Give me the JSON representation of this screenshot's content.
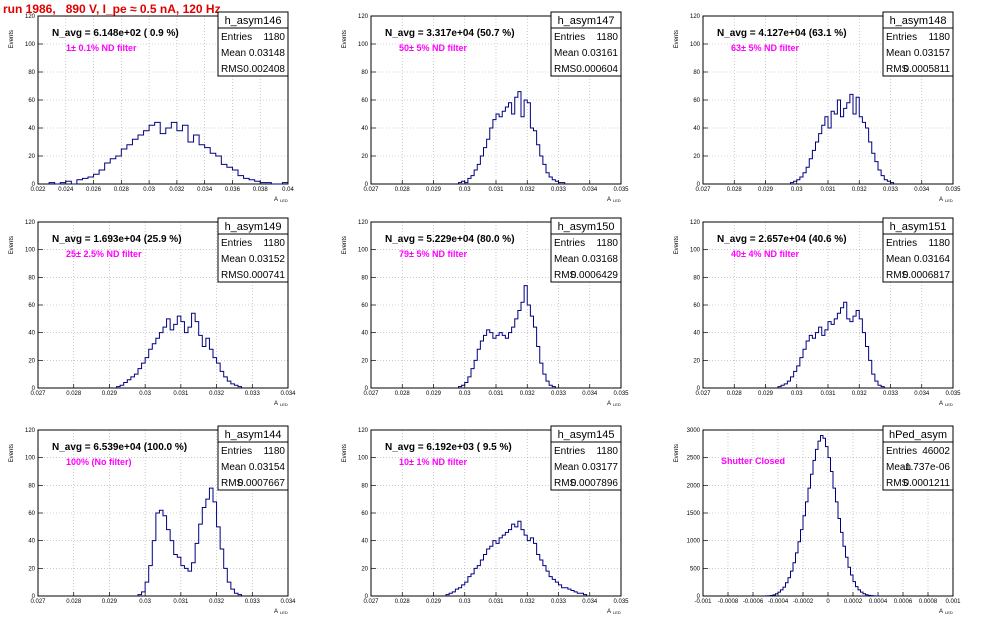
{
  "title": "run 1986,   890 V, I_pe ≈ 0.5 nA, 120 Hz",
  "chart_data": [
    {
      "type": "histogram",
      "name": "h_asym146",
      "navg": "N_avg = 6.148e+02 ( 0.9 %)",
      "filter": "1± 0.1% ND filter",
      "stats": {
        "entries": "1180",
        "mean": "0.03148",
        "rms": "0.002408"
      },
      "xlim": [
        0.022,
        0.04
      ],
      "ylim": [
        0,
        120
      ],
      "xticks": [
        0.022,
        0.024,
        0.026,
        0.028,
        0.03,
        0.032,
        0.034,
        0.036,
        0.038,
        0.04
      ],
      "xticklabels": [
        "0.022",
        "0.024",
        "0.026",
        "0.028",
        "0.03",
        "0.032",
        "0.034",
        "0.036",
        "0.038",
        "0.04"
      ],
      "yticks": [
        0,
        20,
        40,
        60,
        80,
        100,
        120
      ],
      "ylabel": "Events",
      "xlabel": "A",
      "xlabel_sub": "LED",
      "bins": {
        "start": 0.0228,
        "width": 0.0004,
        "values": [
          1,
          0,
          1,
          2,
          0,
          3,
          4,
          5,
          7,
          10,
          15,
          18,
          20,
          25,
          28,
          32,
          35,
          38,
          42,
          44,
          36,
          40,
          44,
          38,
          42,
          30,
          35,
          28,
          26,
          22,
          20,
          14,
          12,
          10,
          6,
          4,
          3,
          2,
          1,
          1,
          0,
          0,
          1
        ]
      }
    },
    {
      "type": "histogram",
      "name": "h_asym147",
      "navg": "N_avg = 3.317e+04 (50.7 %)",
      "filter": "50± 5% ND filter",
      "stats": {
        "entries": "1180",
        "mean": "0.03161",
        "rms": "0.000604"
      },
      "xlim": [
        0.027,
        0.035
      ],
      "ylim": [
        0,
        120
      ],
      "xticks": [
        0.027,
        0.028,
        0.029,
        0.03,
        0.031,
        0.032,
        0.033,
        0.034,
        0.035
      ],
      "xticklabels": [
        "0.027",
        "0.028",
        "0.029",
        "0.03",
        "0.031",
        "0.032",
        "0.033",
        "0.034",
        "0.035"
      ],
      "yticks": [
        0,
        20,
        40,
        60,
        80,
        100,
        120
      ],
      "ylabel": "Events",
      "xlabel": "A",
      "xlabel_sub": "LED",
      "bins": {
        "start": 0.0298,
        "width": 0.0001,
        "values": [
          1,
          2,
          1,
          4,
          6,
          10,
          14,
          20,
          26,
          32,
          40,
          46,
          50,
          48,
          52,
          55,
          58,
          50,
          62,
          66,
          48,
          60,
          58,
          40,
          38,
          28,
          20,
          14,
          8,
          5,
          3,
          2,
          1,
          1
        ]
      }
    },
    {
      "type": "histogram",
      "name": "h_asym148",
      "navg": "N_avg = 4.127e+04 (63.1 %)",
      "filter": "63± 5% ND filter",
      "stats": {
        "entries": "1180",
        "mean": "0.03157",
        "rms": "0.0005811"
      },
      "xlim": [
        0.027,
        0.035
      ],
      "ylim": [
        0,
        120
      ],
      "xticks": [
        0.027,
        0.028,
        0.029,
        0.03,
        0.031,
        0.032,
        0.033,
        0.034,
        0.035
      ],
      "xticklabels": [
        "0.027",
        "0.028",
        "0.029",
        "0.03",
        "0.031",
        "0.032",
        "0.033",
        "0.034",
        "0.035"
      ],
      "yticks": [
        0,
        20,
        40,
        60,
        80,
        100,
        120
      ],
      "ylabel": "Events",
      "xlabel": "A",
      "xlabel_sub": "LED",
      "bins": {
        "start": 0.0298,
        "width": 0.0001,
        "values": [
          1,
          2,
          3,
          5,
          8,
          12,
          18,
          24,
          30,
          36,
          42,
          48,
          40,
          52,
          50,
          60,
          48,
          54,
          58,
          64,
          50,
          62,
          48,
          44,
          40,
          30,
          22,
          16,
          10,
          6,
          3,
          2,
          1
        ]
      }
    },
    {
      "type": "histogram",
      "name": "h_asym149",
      "navg": "N_avg = 1.693e+04 (25.9 %)",
      "filter": "25± 2.5% ND filter",
      "stats": {
        "entries": "1180",
        "mean": "0.03152",
        "rms": "0.000741"
      },
      "xlim": [
        0.027,
        0.034
      ],
      "ylim": [
        0,
        120
      ],
      "xticks": [
        0.027,
        0.028,
        0.029,
        0.03,
        0.031,
        0.032,
        0.033,
        0.034
      ],
      "xticklabels": [
        "0.027",
        "0.028",
        "0.029",
        "0.03",
        "0.031",
        "0.032",
        "0.033",
        "0.034"
      ],
      "yticks": [
        0,
        20,
        40,
        60,
        80,
        100,
        120
      ],
      "ylabel": "Events",
      "xlabel": "A",
      "xlabel_sub": "LED",
      "bins": {
        "start": 0.0292,
        "width": 0.0001,
        "values": [
          1,
          2,
          4,
          6,
          8,
          10,
          14,
          18,
          22,
          28,
          32,
          36,
          40,
          44,
          50,
          42,
          46,
          52,
          48,
          40,
          44,
          54,
          48,
          38,
          30,
          36,
          28,
          22,
          18,
          12,
          8,
          5,
          3,
          2,
          1
        ]
      }
    },
    {
      "type": "histogram",
      "name": "h_asym150",
      "navg": "N_avg = 5.229e+04 (80.0 %)",
      "filter": "79± 5% ND filter",
      "stats": {
        "entries": "1180",
        "mean": "0.03168",
        "rms": "0.0006429"
      },
      "xlim": [
        0.027,
        0.035
      ],
      "ylim": [
        0,
        120
      ],
      "xticks": [
        0.027,
        0.028,
        0.029,
        0.03,
        0.031,
        0.032,
        0.033,
        0.034,
        0.035
      ],
      "xticklabels": [
        "0.027",
        "0.028",
        "0.029",
        "0.03",
        "0.031",
        "0.032",
        "0.033",
        "0.034",
        "0.035"
      ],
      "yticks": [
        0,
        20,
        40,
        60,
        80,
        100,
        120
      ],
      "ylabel": "Events",
      "xlabel": "A",
      "xlabel_sub": "LED",
      "bins": {
        "start": 0.0298,
        "width": 0.0001,
        "values": [
          1,
          2,
          4,
          8,
          14,
          20,
          28,
          34,
          38,
          42,
          40,
          36,
          38,
          40,
          38,
          36,
          40,
          44,
          50,
          56,
          62,
          74,
          60,
          52,
          44,
          30,
          18,
          10,
          5,
          2,
          1
        ]
      }
    },
    {
      "type": "histogram",
      "name": "h_asym151",
      "navg": "N_avg = 2.657e+04 (40.6 %)",
      "filter": "40± 4% ND filter",
      "stats": {
        "entries": "1180",
        "mean": "0.03164",
        "rms": "0.0006817"
      },
      "xlim": [
        0.027,
        0.035
      ],
      "ylim": [
        0,
        120
      ],
      "xticks": [
        0.027,
        0.028,
        0.029,
        0.03,
        0.031,
        0.032,
        0.033,
        0.034,
        0.035
      ],
      "xticklabels": [
        "0.027",
        "0.028",
        "0.029",
        "0.03",
        "0.031",
        "0.032",
        "0.033",
        "0.034",
        "0.035"
      ],
      "yticks": [
        0,
        20,
        40,
        60,
        80,
        100,
        120
      ],
      "ylabel": "Events",
      "xlabel": "A",
      "xlabel_sub": "LED",
      "bins": {
        "start": 0.0294,
        "width": 0.0001,
        "values": [
          1,
          2,
          3,
          5,
          8,
          12,
          16,
          22,
          28,
          34,
          38,
          36,
          40,
          44,
          38,
          42,
          48,
          46,
          50,
          54,
          58,
          62,
          50,
          48,
          52,
          56,
          50,
          40,
          30,
          20,
          10,
          5,
          2,
          1
        ]
      }
    },
    {
      "type": "histogram",
      "name": "h_asym144",
      "navg": "N_avg = 6.539e+04 (100.0 %)",
      "filter": "100% (No filter)",
      "stats": {
        "entries": "1180",
        "mean": "0.03154",
        "rms": "0.0007667"
      },
      "xlim": [
        0.027,
        0.034
      ],
      "ylim": [
        0,
        120
      ],
      "xticks": [
        0.027,
        0.028,
        0.029,
        0.03,
        0.031,
        0.032,
        0.033,
        0.034
      ],
      "xticklabels": [
        "0.027",
        "0.028",
        "0.029",
        "0.03",
        "0.031",
        "0.032",
        "0.033",
        "0.034"
      ],
      "yticks": [
        0,
        20,
        40,
        60,
        80,
        100,
        120
      ],
      "ylabel": "Events",
      "xlabel": "A",
      "xlabel_sub": "LED",
      "bins": {
        "start": 0.0298,
        "width": 0.0001,
        "values": [
          1,
          3,
          10,
          22,
          40,
          60,
          62,
          58,
          48,
          40,
          30,
          28,
          22,
          20,
          18,
          24,
          38,
          52,
          64,
          70,
          78,
          68,
          50,
          34,
          20,
          10,
          5,
          2,
          1
        ]
      }
    },
    {
      "type": "histogram",
      "name": "h_asym145",
      "navg": "N_avg = 6.192e+03 ( 9.5 %)",
      "filter": "10± 1% ND filter",
      "stats": {
        "entries": "1180",
        "mean": "0.03177",
        "rms": "0.0007896"
      },
      "xlim": [
        0.027,
        0.035
      ],
      "ylim": [
        0,
        120
      ],
      "xticks": [
        0.027,
        0.028,
        0.029,
        0.03,
        0.031,
        0.032,
        0.033,
        0.034,
        0.035
      ],
      "xticklabels": [
        "0.027",
        "0.028",
        "0.029",
        "0.03",
        "0.031",
        "0.032",
        "0.033",
        "0.034",
        "0.035"
      ],
      "yticks": [
        0,
        20,
        40,
        60,
        80,
        100,
        120
      ],
      "ylabel": "Events",
      "xlabel": "A",
      "xlabel_sub": "LED",
      "bins": {
        "start": 0.0294,
        "width": 0.0001,
        "values": [
          1,
          2,
          3,
          5,
          6,
          8,
          10,
          14,
          16,
          20,
          22,
          26,
          30,
          34,
          36,
          40,
          38,
          42,
          44,
          46,
          48,
          52,
          50,
          54,
          48,
          44,
          40,
          42,
          38,
          30,
          26,
          22,
          18,
          14,
          12,
          10,
          8,
          6,
          6,
          5,
          4,
          3,
          2,
          2,
          1
        ]
      }
    },
    {
      "type": "histogram",
      "name": "hPed_asym",
      "navg": "",
      "filter": "Shutter Closed",
      "stats": {
        "entries": "46002",
        "mean": "-1.737e-06",
        "rms": "0.0001211"
      },
      "xlim": [
        -0.001,
        0.001
      ],
      "ylim": [
        0,
        3000
      ],
      "xticks": [
        -0.001,
        -0.0008,
        -0.0006,
        -0.0004,
        -0.0002,
        0,
        0.0002,
        0.0004,
        0.0006,
        0.0008,
        0.001
      ],
      "xticklabels": [
        "-0.001",
        "-0.0008",
        "-0.0006",
        "-0.0004",
        "-0.0002",
        "0",
        "0.0002",
        "0.0004",
        "0.0006",
        "0.0008",
        "0.001"
      ],
      "yticks": [
        0,
        500,
        1000,
        1500,
        2000,
        2500,
        3000
      ],
      "ylabel": "Events",
      "xlabel": "A",
      "xlabel_sub": "LED",
      "bins": {
        "start": -0.0005,
        "width": 2e-05,
        "values": [
          2,
          5,
          10,
          20,
          40,
          70,
          110,
          160,
          240,
          330,
          450,
          600,
          780,
          980,
          1200,
          1450,
          1700,
          1950,
          2200,
          2450,
          2650,
          2800,
          2900,
          2850,
          2700,
          2500,
          2250,
          1950,
          1700,
          1400,
          1150,
          900,
          700,
          520,
          380,
          260,
          170,
          110,
          70,
          40,
          22,
          12,
          6,
          3,
          1
        ]
      }
    }
  ]
}
